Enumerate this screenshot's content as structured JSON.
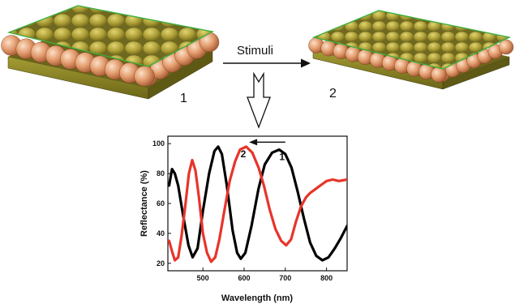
{
  "diagram": {
    "stimuli_label": "Stimuli",
    "film_1_label": "1",
    "film_2_label": "2"
  },
  "colors": {
    "sphere_light": "#f6c9a4",
    "sphere_dark": "#b8663e",
    "olive_light": "#c8bd4e",
    "olive_dark": "#7b7128",
    "substrate": "#8f8a2a",
    "edge_green": "#3fae3f",
    "series_1": "#000000",
    "series_2": "#e8342a"
  },
  "chart_data": {
    "type": "line",
    "xlabel": "Wavelength (nm)",
    "ylabel": "Reflectance (%)",
    "xlim": [
      415,
      850
    ],
    "ylim": [
      15,
      105
    ],
    "xticks": [
      500,
      600,
      700,
      800
    ],
    "yticks": [
      20,
      40,
      60,
      80,
      100
    ],
    "annotations": [
      {
        "text": "2",
        "x": 598,
        "y": 91
      },
      {
        "text": "1",
        "x": 692,
        "y": 89
      }
    ],
    "shift_arrow": {
      "from": 700,
      "to": 612,
      "y": 101
    },
    "series": [
      {
        "name": "1",
        "color": "#000000",
        "points": [
          [
            418,
            72
          ],
          [
            425,
            83
          ],
          [
            432,
            80
          ],
          [
            440,
            72
          ],
          [
            452,
            52
          ],
          [
            465,
            32
          ],
          [
            475,
            24
          ],
          [
            487,
            30
          ],
          [
            500,
            55
          ],
          [
            515,
            80
          ],
          [
            528,
            95
          ],
          [
            537,
            98
          ],
          [
            546,
            93
          ],
          [
            558,
            72
          ],
          [
            572,
            42
          ],
          [
            583,
            27
          ],
          [
            592,
            23
          ],
          [
            603,
            27
          ],
          [
            618,
            45
          ],
          [
            635,
            70
          ],
          [
            650,
            86
          ],
          [
            668,
            94
          ],
          [
            685,
            96
          ],
          [
            700,
            93
          ],
          [
            715,
            84
          ],
          [
            730,
            68
          ],
          [
            745,
            50
          ],
          [
            760,
            34
          ],
          [
            775,
            25
          ],
          [
            790,
            22
          ],
          [
            805,
            24
          ],
          [
            820,
            30
          ],
          [
            835,
            37
          ],
          [
            850,
            45
          ]
        ]
      },
      {
        "name": "2",
        "color": "#e8342a",
        "points": [
          [
            418,
            35
          ],
          [
            425,
            28
          ],
          [
            432,
            22
          ],
          [
            440,
            24
          ],
          [
            448,
            38
          ],
          [
            458,
            60
          ],
          [
            466,
            80
          ],
          [
            474,
            89
          ],
          [
            482,
            82
          ],
          [
            490,
            65
          ],
          [
            500,
            40
          ],
          [
            510,
            27
          ],
          [
            520,
            21
          ],
          [
            530,
            24
          ],
          [
            540,
            36
          ],
          [
            552,
            55
          ],
          [
            565,
            75
          ],
          [
            578,
            88
          ],
          [
            590,
            96
          ],
          [
            605,
            98
          ],
          [
            620,
            94
          ],
          [
            635,
            84
          ],
          [
            648,
            72
          ],
          [
            662,
            56
          ],
          [
            676,
            43
          ],
          [
            690,
            35
          ],
          [
            702,
            32
          ],
          [
            714,
            36
          ],
          [
            726,
            48
          ],
          [
            738,
            58
          ],
          [
            750,
            64
          ],
          [
            760,
            67
          ],
          [
            770,
            69
          ],
          [
            780,
            71
          ],
          [
            790,
            73
          ],
          [
            800,
            75
          ],
          [
            815,
            76
          ],
          [
            830,
            75
          ],
          [
            850,
            76
          ]
        ]
      }
    ]
  }
}
